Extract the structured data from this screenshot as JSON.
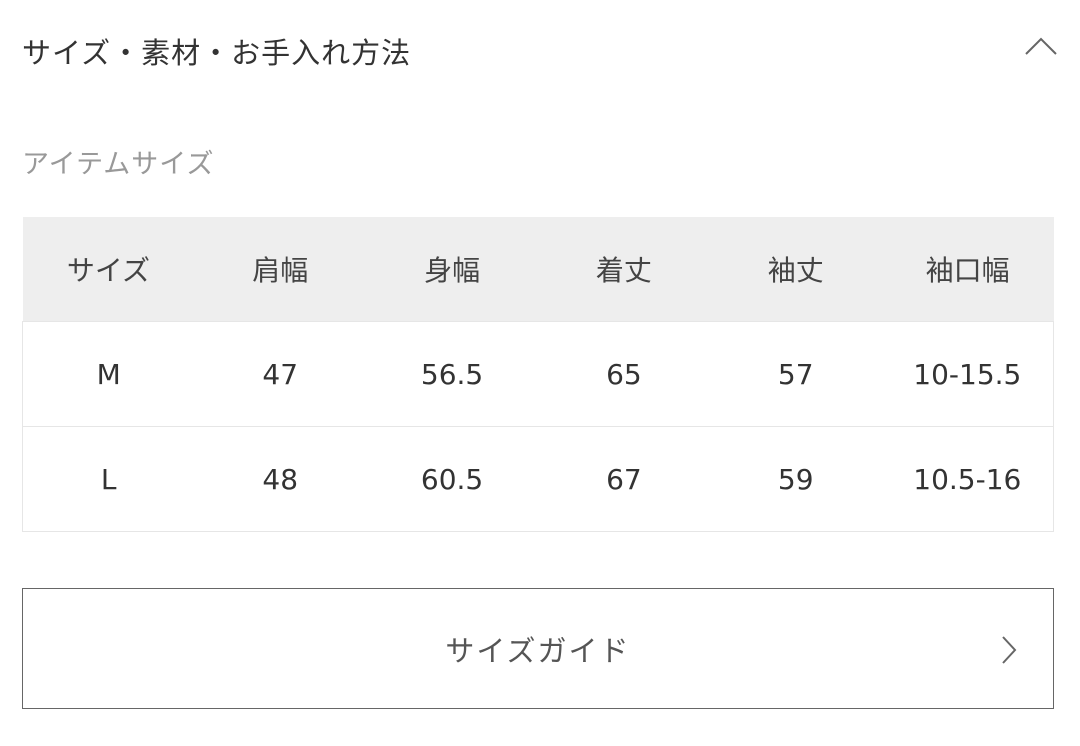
{
  "section": {
    "title": "サイズ・素材・お手入れ方法",
    "toggle_icon": "chevron-up-icon"
  },
  "item_size": {
    "title": "アイテムサイズ"
  },
  "table": {
    "headers": [
      "サイズ",
      "肩幅",
      "身幅",
      "着丈",
      "袖丈",
      "袖口幅"
    ],
    "rows": [
      [
        "M",
        "47",
        "56.5",
        "65",
        "57",
        "10-15.5"
      ],
      [
        "L",
        "48",
        "60.5",
        "67",
        "59",
        "10.5-16"
      ]
    ]
  },
  "size_guide": {
    "label": "サイズガイド",
    "icon": "chevron-right-icon"
  },
  "colors": {
    "header_bg": "#eeeeee",
    "text": "#333333",
    "muted": "#999999"
  }
}
